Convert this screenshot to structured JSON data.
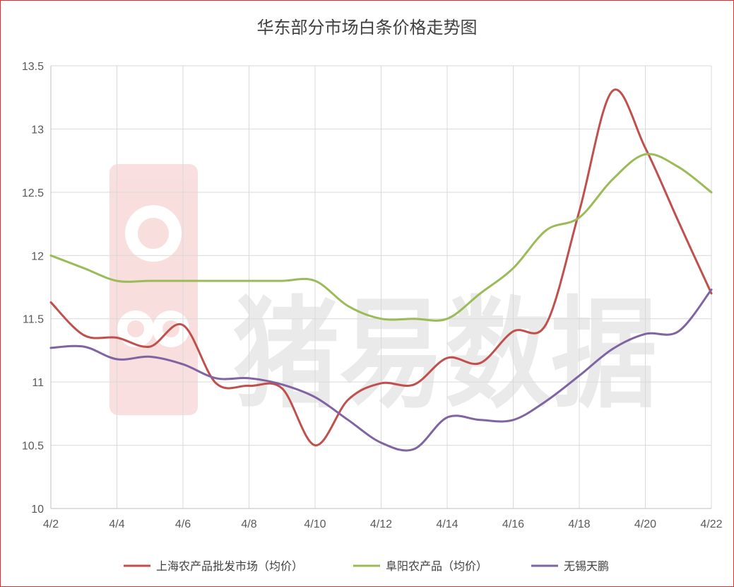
{
  "chart_data": {
    "type": "line",
    "title": "华东部分市场白条价格走势图",
    "xlabel": "",
    "ylabel": "",
    "x": [
      "4/2",
      "4/3",
      "4/4",
      "4/5",
      "4/6",
      "4/7",
      "4/8",
      "4/9",
      "4/10",
      "4/11",
      "4/12",
      "4/13",
      "4/14",
      "4/15",
      "4/16",
      "4/17",
      "4/18",
      "4/19",
      "4/20",
      "4/21",
      "4/22"
    ],
    "x_tick_labels": [
      "4/2",
      "4/4",
      "4/6",
      "4/8",
      "4/10",
      "4/12",
      "4/14",
      "4/16",
      "4/18",
      "4/20",
      "4/22"
    ],
    "ylim": [
      10,
      13.5
    ],
    "y_ticks": [
      "10",
      "10.5",
      "11",
      "11.5",
      "12",
      "12.5",
      "13",
      "13.5"
    ],
    "grid": true,
    "legend_position": "bottom",
    "series": [
      {
        "name": "上海农产品批发市场（均价）",
        "color": "#c0504d",
        "values": [
          11.63,
          11.37,
          11.35,
          11.28,
          11.45,
          10.99,
          10.97,
          10.95,
          10.5,
          10.86,
          10.99,
          10.98,
          11.19,
          11.15,
          11.4,
          11.46,
          12.35,
          13.3,
          12.85,
          12.27,
          11.7
        ]
      },
      {
        "name": "阜阳农产品（均价）",
        "color": "#9bbb59",
        "values": [
          12.0,
          11.9,
          11.8,
          11.8,
          11.8,
          11.8,
          11.8,
          11.8,
          11.8,
          11.6,
          11.5,
          11.5,
          11.5,
          11.7,
          11.9,
          12.2,
          12.3,
          12.6,
          12.8,
          12.7,
          12.5
        ]
      },
      {
        "name": "无锡天鹏",
        "color": "#8064a2",
        "values": [
          11.27,
          11.28,
          11.18,
          11.2,
          11.14,
          11.03,
          11.03,
          10.98,
          10.88,
          10.7,
          10.52,
          10.47,
          10.72,
          10.7,
          10.7,
          10.85,
          11.05,
          11.26,
          11.38,
          11.4,
          11.73
        ]
      }
    ]
  },
  "watermark": {
    "text": "猪易数据",
    "logo": "pig-logo-icon"
  }
}
